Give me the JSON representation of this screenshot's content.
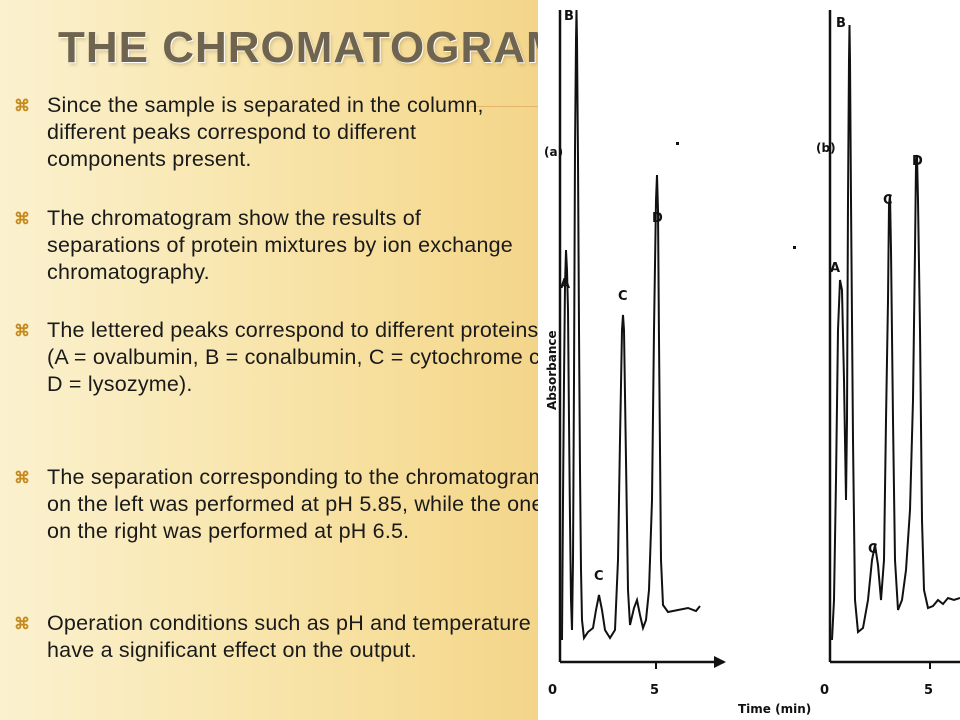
{
  "slide": {
    "title": "The Chromatogram",
    "bullets": [
      "Since the sample is separated in the column, different peaks correspond to different components present.",
      " The chromatogram show the results of separations of protein mixtures by ion exchange chromatography.",
      " The lettered peaks correspond to different proteins (A = ovalbumin, B = conalbumin, C = cytochrome c, D = lysozyme).",
      "The separation corresponding to the chromatogram on the left was performed at pH 5.85, while the one on the right was performed at pH 6.5.",
      "Operation conditions such as pH and temperature have a significant effect on the output."
    ],
    "bullet_icon": "cross-x-icon",
    "accent_color": "#c58a1e"
  },
  "figure": {
    "panel_a_label": "(a)",
    "panel_b_label": "(b)",
    "y_axis_label": "Absorbance",
    "x_axis_label": "Time (min)",
    "tick_0_a": "0",
    "tick_5_a": "5",
    "tick_0_b": "0",
    "tick_5_b": "5",
    "peaks_a": {
      "A": "A",
      "B": "B",
      "C_small": "C",
      "C": "C",
      "D": "D"
    },
    "peaks_b": {
      "A": "A",
      "B": "B",
      "C_small": "C",
      "C": "C",
      "D": "D"
    }
  }
}
